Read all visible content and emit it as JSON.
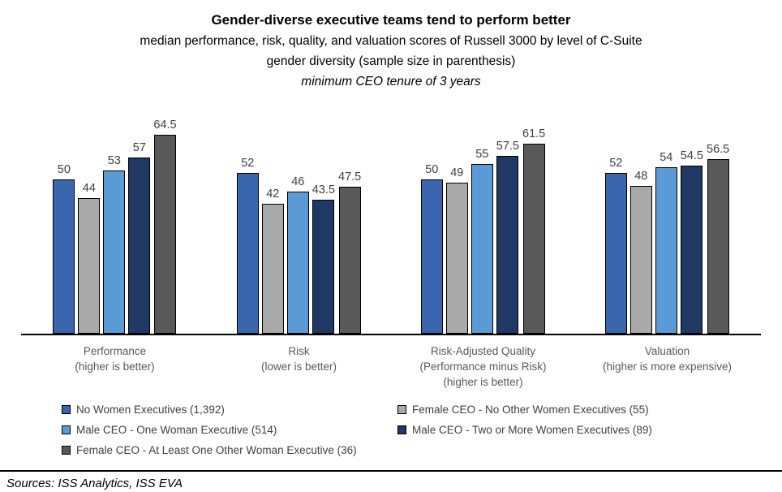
{
  "title": "Gender-diverse executive teams tend to perform better",
  "subtitle_line1": "median performance, risk, quality, and valuation scores of Russell 3000 by level of C-Suite",
  "subtitle_line2": "gender diversity (sample size in parenthesis)",
  "subtitle_italic": "minimum CEO tenure of 3 years",
  "sources": "Sources: ISS Analytics, ISS EVA",
  "chart_data": {
    "type": "bar",
    "title": "Gender-diverse executive teams tend to perform better",
    "subtitle": "median performance, risk, quality, and valuation scores of Russell 3000 by level of C-Suite gender diversity (sample size in parenthesis), minimum CEO tenure of 3 years",
    "grid": false,
    "legend_position": "bottom-left",
    "ylim": [
      0,
      70
    ],
    "categories": [
      {
        "lines": [
          "Performance",
          "(higher is better)"
        ]
      },
      {
        "lines": [
          "Risk",
          "(lower is better)"
        ]
      },
      {
        "lines": [
          "Risk-Adjusted Quality",
          "(Performance minus Risk)",
          "(higher is better)"
        ]
      },
      {
        "lines": [
          "Valuation",
          "(higher is more expensive)"
        ]
      }
    ],
    "series": [
      {
        "name": "No Women Executives (1,392)",
        "color": "#3a66ad",
        "values": [
          50,
          52,
          50,
          52
        ]
      },
      {
        "name": "Female CEO - No Other Women Executives (55)",
        "color": "#a9a9a9",
        "values": [
          44,
          42,
          49,
          48
        ]
      },
      {
        "name": "Male CEO - One Woman Executive (514)",
        "color": "#5b9bd5",
        "values": [
          53,
          46,
          55,
          54
        ]
      },
      {
        "name": "Male CEO - Two or More Women Executives (89)",
        "color": "#1f3864",
        "values": [
          57,
          43.5,
          57.5,
          54.5
        ]
      },
      {
        "name": "Female CEO - At Least One Other Woman Executive (36)",
        "color": "#595959",
        "values": [
          64.5,
          47.5,
          61.5,
          56.5
        ]
      }
    ]
  },
  "legend": {
    "items": [
      {
        "label": "No Women Executives (1,392)",
        "color": "#3a66ad"
      },
      {
        "label": "Female CEO - No Other Women Executives (55)",
        "color": "#a9a9a9"
      },
      {
        "label": "Male CEO - One Woman Executive (514)",
        "color": "#5b9bd5"
      },
      {
        "label": "Male CEO - Two or More Women Executives (89)",
        "color": "#1f3864"
      },
      {
        "label": "Female CEO - At Least One Other Woman Executive (36)",
        "color": "#595959"
      }
    ]
  }
}
